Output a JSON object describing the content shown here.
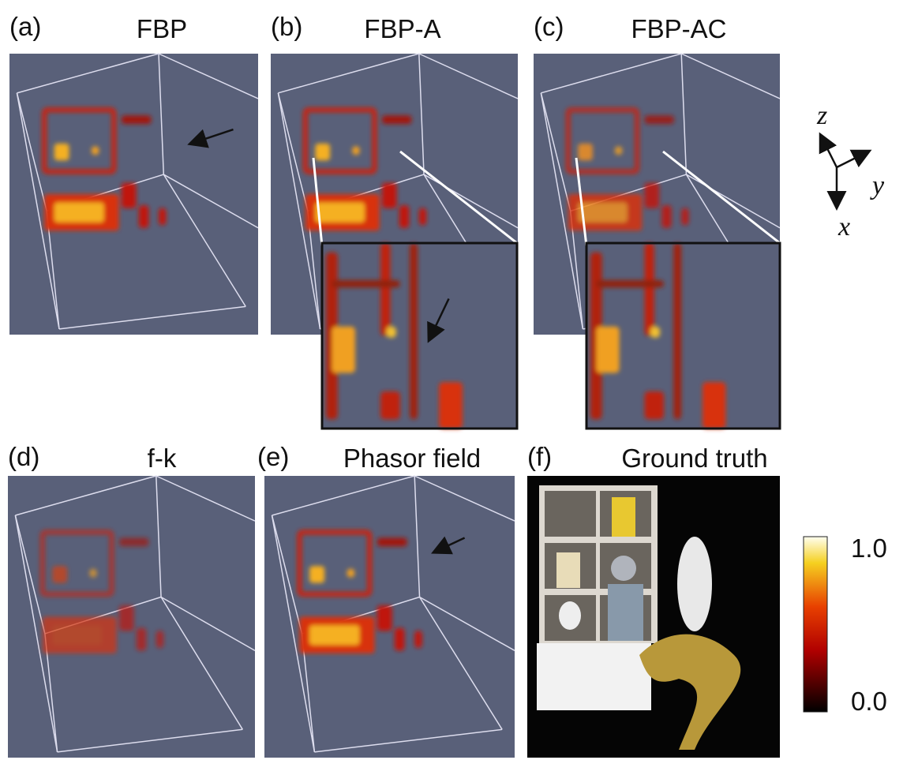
{
  "panels": [
    {
      "label": "(a)",
      "title": "FBP"
    },
    {
      "label": "(b)",
      "title": "FBP-A"
    },
    {
      "label": "(c)",
      "title": "FBP-AC"
    },
    {
      "label": "(d)",
      "title": "f-k"
    },
    {
      "label": "(e)",
      "title": "Phasor field"
    },
    {
      "label": "(f)",
      "title": "Ground truth"
    }
  ],
  "axes": {
    "z": "z",
    "y": "y",
    "x": "x"
  },
  "colorbar": {
    "max_label": "1.0",
    "min_label": "0.0"
  }
}
